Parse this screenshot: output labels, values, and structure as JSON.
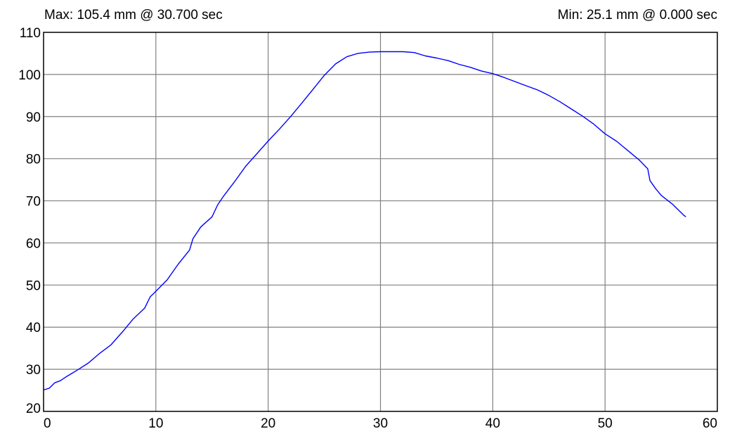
{
  "header": {
    "max_text": "Max: 105.4 mm @ 30.700 sec",
    "min_text": "Min: 25.1 mm @ 0.000 sec"
  },
  "colors": {
    "line": "#0000ff",
    "grid": "#808080",
    "frame": "#000000",
    "background": "#ffffff"
  },
  "chart_data": {
    "type": "line",
    "title": "",
    "xlabel": "",
    "ylabel": "",
    "xlim": [
      0,
      60
    ],
    "ylim": [
      20,
      110
    ],
    "x_ticks": [
      0,
      10,
      20,
      30,
      40,
      50,
      60
    ],
    "y_ticks": [
      20,
      30,
      40,
      50,
      60,
      70,
      80,
      90,
      100,
      110
    ],
    "grid": true,
    "legend": "none",
    "series": [
      {
        "x": [
          0,
          0.5,
          1,
          1.5,
          2,
          2.5,
          3,
          4,
          5,
          6,
          7,
          8,
          9,
          9.5,
          10,
          11,
          12,
          13,
          13.3,
          14,
          15,
          15.5,
          16,
          17,
          18,
          19,
          20,
          21,
          22,
          23,
          24,
          25,
          26,
          27,
          28,
          29,
          30,
          30.7,
          32,
          33,
          34,
          35,
          36,
          37,
          38,
          39,
          40,
          41,
          42,
          43,
          44,
          45,
          46,
          47,
          48,
          49,
          50,
          51,
          52,
          53,
          53.8,
          54,
          54.5,
          55,
          56,
          57,
          57.2
        ],
        "values": [
          25.1,
          25.5,
          26.8,
          27.3,
          28.2,
          29.0,
          29.8,
          31.5,
          33.8,
          35.8,
          38.8,
          42.0,
          44.5,
          47.2,
          48.5,
          51.2,
          55.0,
          58.3,
          61.0,
          63.8,
          66.2,
          69.0,
          71.0,
          74.5,
          78.2,
          81.2,
          84.2,
          87.0,
          90.0,
          93.2,
          96.5,
          99.8,
          102.5,
          104.2,
          105.0,
          105.3,
          105.4,
          105.4,
          105.4,
          105.2,
          104.4,
          103.9,
          103.3,
          102.4,
          101.7,
          100.8,
          100.2,
          99.3,
          98.3,
          97.3,
          96.3,
          95.0,
          93.5,
          91.8,
          90.1,
          88.2,
          85.9,
          84.2,
          82.0,
          79.8,
          77.6,
          74.8,
          72.9,
          71.3,
          69.2,
          66.6,
          66.2
        ]
      }
    ]
  }
}
